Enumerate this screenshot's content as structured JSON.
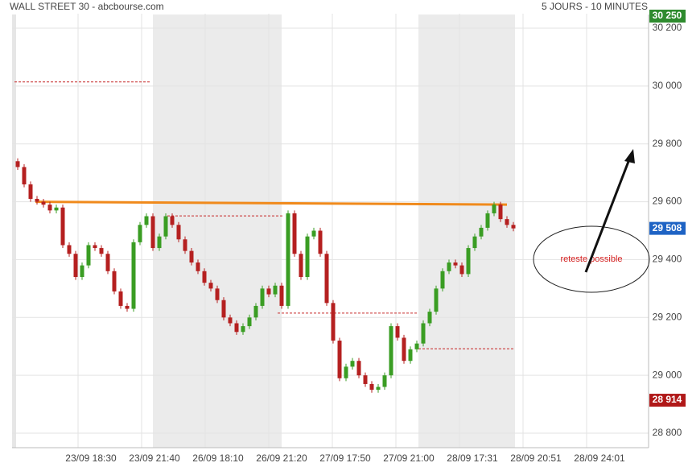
{
  "chart_data": {
    "type": "candlestick",
    "title": "WALL STREET 30 - abcbourse.com",
    "subtitle": "5 JOURS - 10 MINUTES",
    "x_labels": [
      "23/09 18:30",
      "23/09 21:40",
      "26/09 18:10",
      "26/09 21:20",
      "27/09 17:50",
      "27/09 21:00",
      "28/09 17:31",
      "28/09 20:51",
      "28/09 24:01"
    ],
    "ylim": [
      28750,
      30250
    ],
    "yticks": [
      {
        "value": 30200,
        "label": "30 200"
      },
      {
        "value": 30000,
        "label": "30 000"
      },
      {
        "value": 29800,
        "label": "29 800"
      },
      {
        "value": 29600,
        "label": "29 600"
      },
      {
        "value": 29400,
        "label": "29 400"
      },
      {
        "value": 29200,
        "label": "29 200"
      },
      {
        "value": 29000,
        "label": "29 000"
      },
      {
        "value": 28800,
        "label": "28 800"
      }
    ],
    "grid": true,
    "up_color": "#3a9d23",
    "down_color": "#b52020",
    "open": [
      29740,
      29720,
      29660,
      29610,
      29600,
      29590,
      29570,
      29580,
      29450,
      29420,
      29340,
      29380,
      29450,
      29440,
      29420,
      29360,
      29290,
      29240,
      29230,
      29460,
      29520,
      29550,
      29440,
      29480,
      29550,
      29520,
      29470,
      29430,
      29390,
      29360,
      29320,
      29300,
      29260,
      29200,
      29180,
      29150,
      29170,
      29200,
      29240,
      29300,
      29280,
      29310,
      29240,
      29560,
      29420,
      29340,
      29480,
      29500,
      29420,
      29250,
      29120,
      28990,
      29030,
      29050,
      29000,
      28970,
      28950,
      28960,
      29000,
      29170,
      29130,
      29050,
      29090,
      29110,
      29180,
      29220,
      29300,
      29360,
      29390,
      29380,
      29350,
      29440,
      29480,
      29510,
      29560,
      29590,
      29540,
      29520
    ],
    "high": [
      29750,
      29730,
      29670,
      29620,
      29610,
      29600,
      29590,
      29590,
      29460,
      29430,
      29390,
      29460,
      29460,
      29450,
      29430,
      29370,
      29300,
      29250,
      29470,
      29530,
      29560,
      29560,
      29490,
      29560,
      29560,
      29530,
      29480,
      29440,
      29400,
      29370,
      29330,
      29310,
      29270,
      29210,
      29190,
      29180,
      29210,
      29250,
      29310,
      29310,
      29320,
      29320,
      29570,
      29570,
      29430,
      29490,
      29510,
      29510,
      29430,
      29260,
      29130,
      29040,
      29060,
      29060,
      29010,
      28980,
      28970,
      29010,
      29180,
      29180,
      29140,
      29100,
      29120,
      29190,
      29230,
      29310,
      29370,
      29400,
      29400,
      29390,
      29450,
      29490,
      29520,
      29570,
      29600,
      29600,
      29550,
      29530
    ],
    "low": [
      29710,
      29650,
      29600,
      29590,
      29580,
      29560,
      29560,
      29440,
      29410,
      29330,
      29330,
      29370,
      29430,
      29410,
      29350,
      29280,
      29230,
      29220,
      29220,
      29450,
      29510,
      29430,
      29430,
      29470,
      29510,
      29460,
      29420,
      29380,
      29350,
      29310,
      29290,
      29250,
      29190,
      29170,
      29140,
      29140,
      29160,
      29190,
      29230,
      29270,
      29270,
      29230,
      29230,
      29410,
      29330,
      29330,
      29470,
      29410,
      29240,
      29110,
      28980,
      28980,
      29020,
      28990,
      28960,
      28940,
      28940,
      28950,
      28990,
      29120,
      29040,
      29040,
      29080,
      29100,
      29170,
      29210,
      29290,
      29350,
      29370,
      29340,
      29340,
      29430,
      29470,
      29500,
      29550,
      29530,
      29510,
      29498
    ],
    "close": [
      29720,
      29660,
      29610,
      29600,
      29590,
      29570,
      29580,
      29450,
      29420,
      29340,
      29380,
      29450,
      29440,
      29420,
      29360,
      29290,
      29240,
      29230,
      29460,
      29520,
      29550,
      29440,
      29480,
      29550,
      29520,
      29470,
      29430,
      29390,
      29360,
      29320,
      29300,
      29260,
      29200,
      29180,
      29150,
      29170,
      29200,
      29240,
      29300,
      29280,
      29310,
      29240,
      29560,
      29420,
      29340,
      29480,
      29500,
      29420,
      29250,
      29120,
      28990,
      29030,
      29050,
      29000,
      28970,
      28950,
      28960,
      29000,
      29170,
      29130,
      29050,
      29090,
      29110,
      29180,
      29220,
      29300,
      29360,
      29390,
      29380,
      29350,
      29440,
      29480,
      29510,
      29560,
      29590,
      29540,
      29520,
      29508
    ],
    "levels": [
      30014,
      29551,
      29215,
      29092
    ],
    "level_color": "#c62828",
    "trendline": [
      29600,
      29590
    ],
    "trendline_color": "#f08a1c",
    "price_badges": [
      {
        "value": 30250,
        "label": "30 250",
        "color": "#2e8b2e"
      },
      {
        "value": 29508,
        "label": "29 508",
        "color": "#1e63c4"
      },
      {
        "value": 28914,
        "label": "28 914",
        "color": "#b01818"
      }
    ],
    "annotation": "reteste possible"
  }
}
